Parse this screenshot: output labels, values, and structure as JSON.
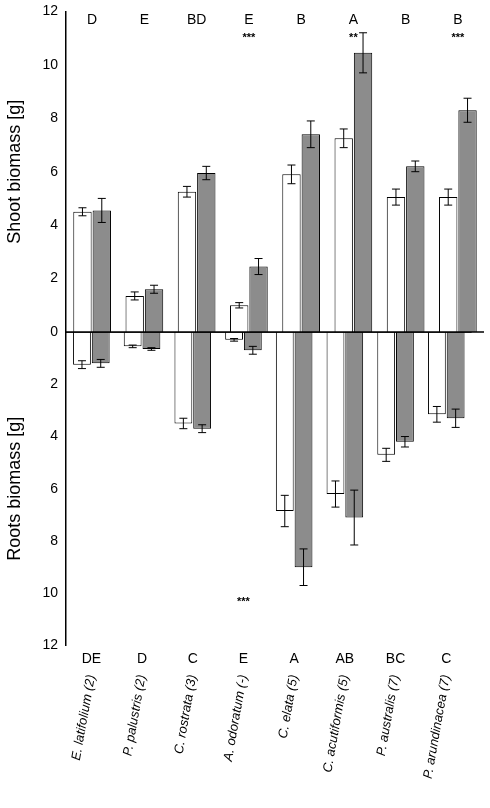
{
  "chart_data": [
    {
      "type": "bar",
      "ylabel": "Shoot biomass [g]",
      "categories": [
        "E. latifolium (2)",
        "P. palustris (2)",
        "C. rostrata (3)",
        "A. odoratum (-)",
        "C. elata (5)",
        "C. acutiformis (5)",
        "P. australis (7)",
        "P. arundinacea (7)"
      ],
      "series": [
        {
          "color": "#ffffff",
          "values": [
            4.5,
            1.35,
            5.25,
            1.0,
            5.9,
            7.25,
            5.05,
            5.05
          ],
          "errors": [
            0.15,
            0.15,
            0.2,
            0.1,
            0.35,
            0.35,
            0.3,
            0.3
          ]
        },
        {
          "color": "#8c8c8c",
          "values": [
            4.55,
            1.6,
            5.95,
            2.45,
            7.4,
            10.45,
            6.2,
            8.3
          ],
          "errors": [
            0.45,
            0.15,
            0.25,
            0.3,
            0.5,
            0.75,
            0.2,
            0.45
          ]
        }
      ],
      "ylim": [
        0,
        12
      ],
      "yticks": [
        0,
        2,
        4,
        6,
        8,
        10,
        12
      ],
      "grid": false,
      "tick_labels": "y",
      "letters": [
        "D",
        "E",
        "BD",
        "E",
        "B",
        "A",
        "B",
        "B"
      ],
      "significance": [
        null,
        null,
        null,
        "***",
        null,
        "**",
        null,
        "***"
      ]
    },
    {
      "type": "bar",
      "ylabel": "Roots biomass [g]",
      "categories": [
        "E. latifolium (2)",
        "P. palustris (2)",
        "C. rostrata (3)",
        "A. odoratum (-)",
        "C. elata (5)",
        "C. acutiformis (5)",
        "P. australis (7)",
        "P. arundinacea (7)"
      ],
      "series": [
        {
          "color": "#ffffff",
          "values": [
            1.25,
            0.55,
            3.5,
            0.3,
            6.85,
            6.2,
            4.7,
            3.15
          ],
          "errors": [
            0.15,
            0.05,
            0.2,
            0.05,
            0.6,
            0.5,
            0.25,
            0.3
          ]
        },
        {
          "color": "#8c8c8c",
          "values": [
            1.2,
            0.65,
            3.7,
            0.7,
            9.0,
            7.1,
            4.2,
            3.3
          ],
          "errors": [
            0.15,
            0.05,
            0.15,
            0.15,
            0.7,
            1.05,
            0.2,
            0.35
          ]
        }
      ],
      "ylim": [
        12,
        0
      ],
      "yticks": [
        2,
        4,
        6,
        8,
        10,
        12
      ],
      "grid": false,
      "letters": [
        "DE",
        "D",
        "C",
        "E",
        "A",
        "AB",
        "BC",
        "C"
      ],
      "significance": [
        null,
        null,
        null,
        "***",
        null,
        null,
        null,
        null
      ]
    }
  ]
}
